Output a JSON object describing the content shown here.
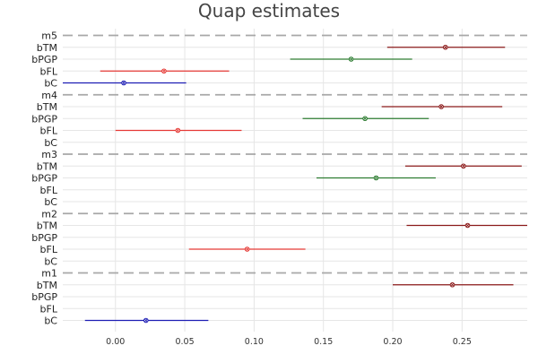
{
  "chart_data": {
    "type": "scatter",
    "title": "Quap estimates",
    "xlabel": "",
    "ylabel": "",
    "xlim": [
      -0.038,
      0.297
    ],
    "x_ticks": [
      "0.00",
      "0.05",
      "0.10",
      "0.15",
      "0.20",
      "0.25"
    ],
    "x_tick_values": [
      0.0,
      0.05,
      0.1,
      0.15,
      0.2,
      0.25
    ],
    "grid": true,
    "legend": "none",
    "colors": {
      "bTM": "#8b1a1a",
      "bPGP": "#2e7d32",
      "bFL": "#e53935",
      "bC": "#1e1eb4",
      "separator": "#a8a8a8",
      "grid": "#e6e6e6"
    },
    "models": [
      {
        "label": "m5",
        "rows": [
          {
            "label": "bTM",
            "mean": 0.238,
            "lo": 0.196,
            "hi": 0.281
          },
          {
            "label": "bPGP",
            "mean": 0.17,
            "lo": 0.126,
            "hi": 0.214
          },
          {
            "label": "bFL",
            "mean": 0.035,
            "lo": -0.011,
            "hi": 0.082
          },
          {
            "label": "bC",
            "mean": 0.006,
            "lo": -0.038,
            "hi": 0.051
          }
        ]
      },
      {
        "label": "m4",
        "rows": [
          {
            "label": "bTM",
            "mean": 0.235,
            "lo": 0.192,
            "hi": 0.279
          },
          {
            "label": "bPGP",
            "mean": 0.18,
            "lo": 0.135,
            "hi": 0.226
          },
          {
            "label": "bFL",
            "mean": 0.045,
            "lo": 0.0,
            "hi": 0.091
          },
          {
            "label": "bC",
            "mean": null,
            "lo": null,
            "hi": null
          }
        ]
      },
      {
        "label": "m3",
        "rows": [
          {
            "label": "bTM",
            "mean": 0.251,
            "lo": 0.209,
            "hi": 0.293
          },
          {
            "label": "bPGP",
            "mean": 0.188,
            "lo": 0.145,
            "hi": 0.231
          },
          {
            "label": "bFL",
            "mean": null,
            "lo": null,
            "hi": null
          },
          {
            "label": "bC",
            "mean": null,
            "lo": null,
            "hi": null
          }
        ]
      },
      {
        "label": "m2",
        "rows": [
          {
            "label": "bTM",
            "mean": 0.254,
            "lo": 0.21,
            "hi": 0.297
          },
          {
            "label": "bPGP",
            "mean": null,
            "lo": null,
            "hi": null
          },
          {
            "label": "bFL",
            "mean": 0.095,
            "lo": 0.053,
            "hi": 0.137
          },
          {
            "label": "bC",
            "mean": null,
            "lo": null,
            "hi": null
          }
        ]
      },
      {
        "label": "m1",
        "rows": [
          {
            "label": "bTM",
            "mean": 0.243,
            "lo": 0.2,
            "hi": 0.287
          },
          {
            "label": "bPGP",
            "mean": null,
            "lo": null,
            "hi": null
          },
          {
            "label": "bFL",
            "mean": null,
            "lo": null,
            "hi": null
          },
          {
            "label": "bC",
            "mean": 0.022,
            "lo": -0.022,
            "hi": 0.067
          }
        ]
      }
    ]
  }
}
